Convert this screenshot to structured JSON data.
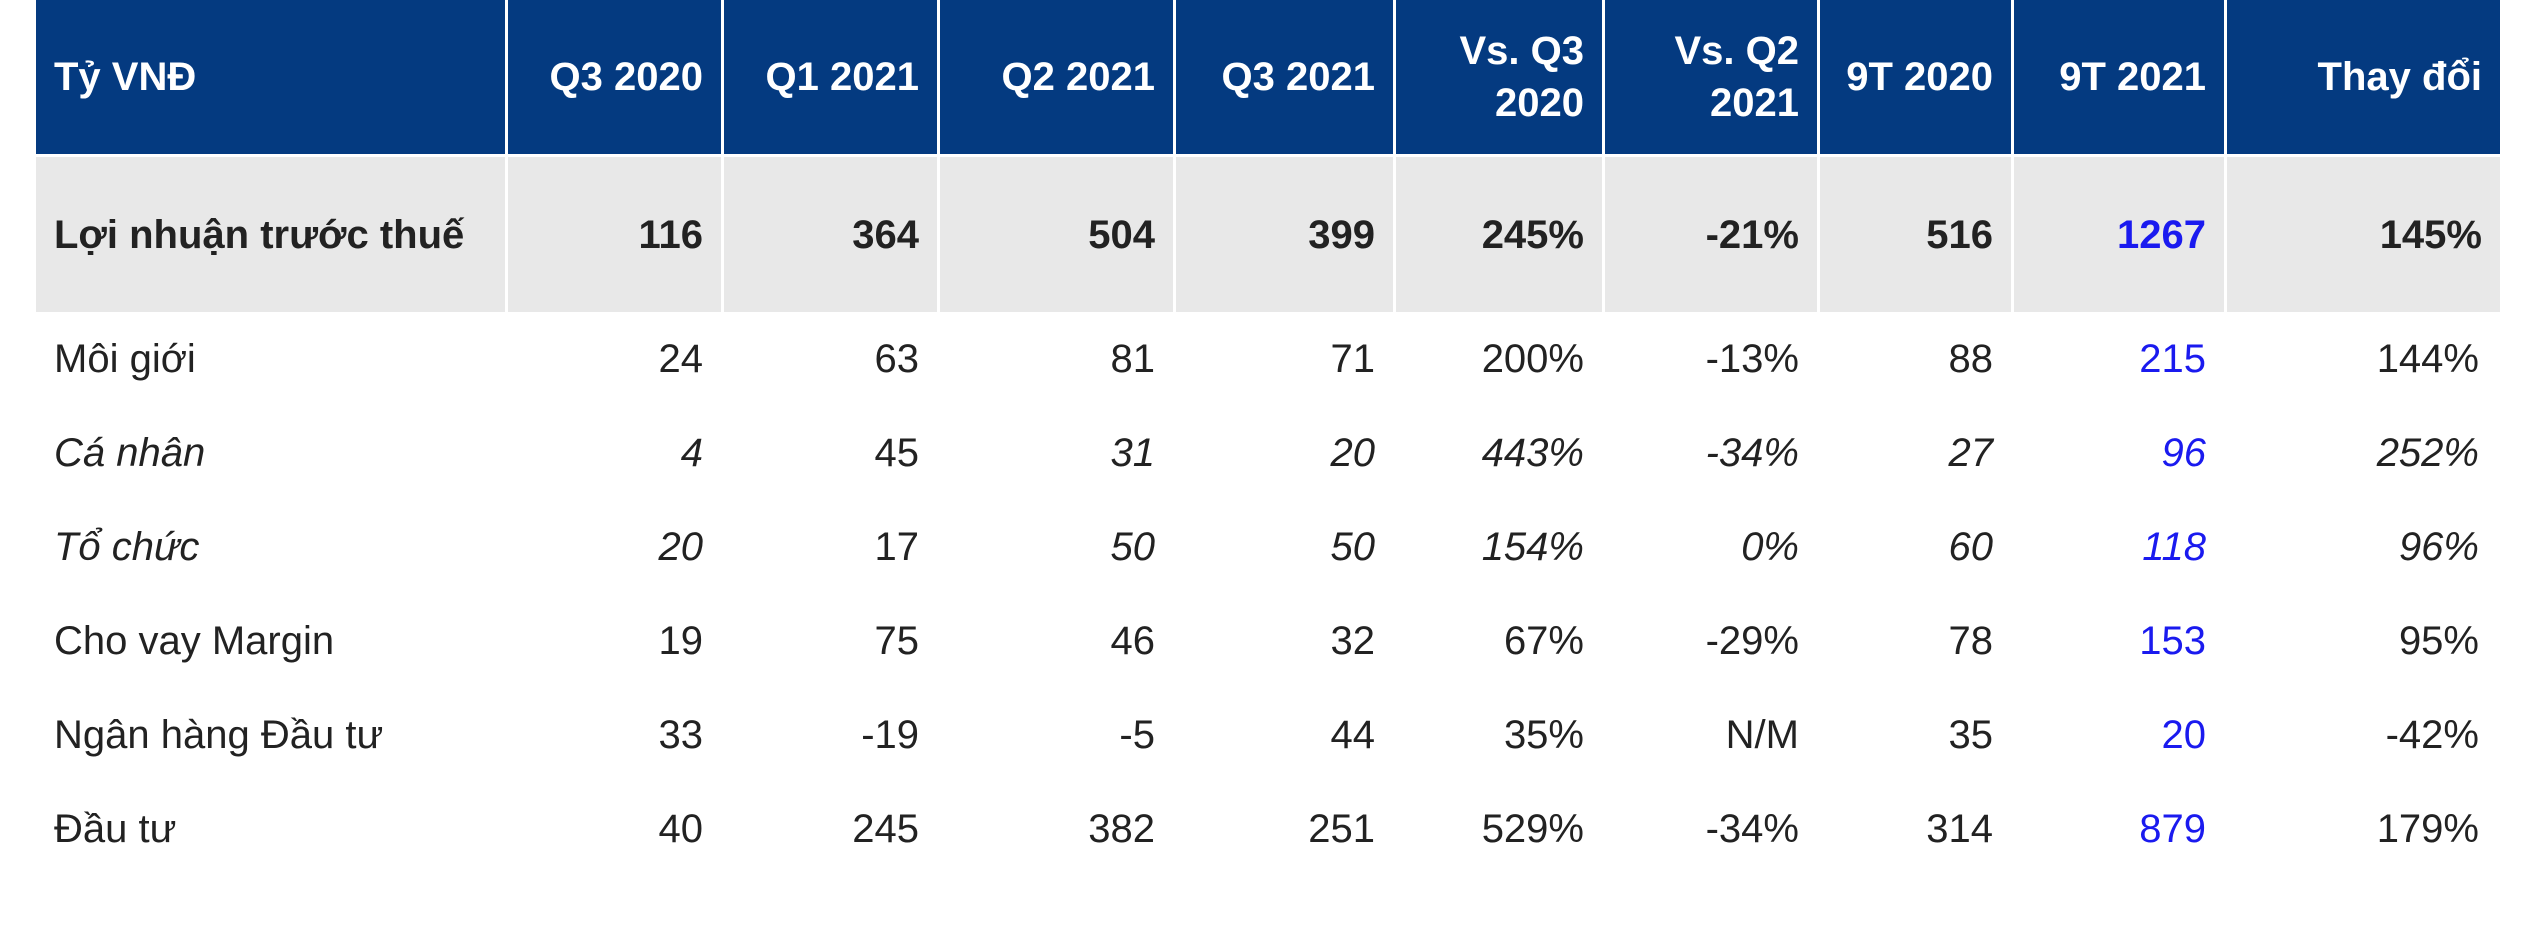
{
  "table": {
    "headers": [
      "Tỷ VNĐ",
      "Q3 2020",
      "Q1 2021",
      "Q2 2021",
      "Q3 2021",
      "Vs. Q3 2020",
      "Vs. Q2 2021",
      "9T 2020",
      "9T 2021",
      "Thay đổi"
    ],
    "rows": [
      {
        "label": "Lợi nhuận trước thuế",
        "values": [
          "116",
          "364",
          "504",
          "399",
          "245%",
          "-21%",
          "516",
          "1267",
          "145%"
        ]
      },
      {
        "label": "Môi giới",
        "values": [
          "24",
          "63",
          "81",
          "71",
          "200%",
          "-13%",
          "88",
          "215",
          "144%"
        ]
      },
      {
        "label": "Cá nhân",
        "values": [
          "4",
          "45",
          "31",
          "20",
          "443%",
          "-34%",
          "27",
          "96",
          "252%"
        ]
      },
      {
        "label": "Tổ chức",
        "values": [
          "20",
          "17",
          "50",
          "50",
          "154%",
          "0%",
          "60",
          "118",
          "96%"
        ]
      },
      {
        "label": "Cho vay Margin",
        "values": [
          "19",
          "75",
          "46",
          "32",
          "67%",
          "-29%",
          "78",
          "153",
          "95%"
        ]
      },
      {
        "label": "Ngân hàng Đầu tư",
        "values": [
          "33",
          "-19",
          "-5",
          "44",
          "35%",
          "N/M",
          "35",
          "20",
          "-42%"
        ]
      },
      {
        "label": "Đầu tư",
        "values": [
          "40",
          "245",
          "382",
          "251",
          "529%",
          "-34%",
          "314",
          "879",
          "179%"
        ]
      }
    ]
  },
  "colors": {
    "header_bg": "#043a80",
    "summary_bg": "#e8e8e8",
    "highlight_text": "#1a1aef"
  }
}
